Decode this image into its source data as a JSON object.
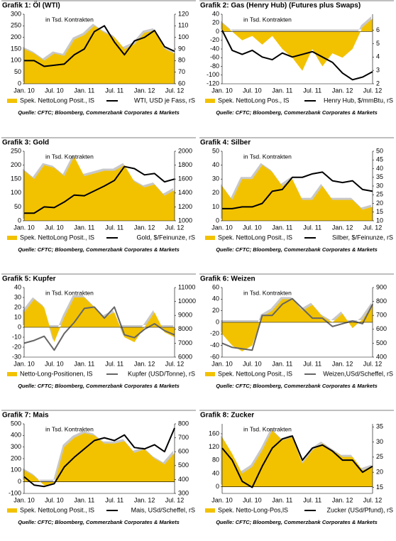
{
  "chart_data": [
    {
      "type": "area",
      "title": "Grafik 1: Öl (WTI)",
      "annotation": "in Tsd. Kontrakten",
      "note": "Quelle: CFTC; Bloomberg, Commerzbank Corporates & Markets",
      "categories": [
        "Jan. 10",
        null,
        null,
        "Jul. 10",
        null,
        null,
        "Jan. 11",
        null,
        null,
        "Jul. 11",
        null,
        null,
        "Jan. 12",
        null,
        null,
        "Jul. 12"
      ],
      "ylim": [
        0,
        300
      ],
      "yticks": [
        0,
        50,
        100,
        150,
        200,
        250,
        300
      ],
      "y2lim": [
        60,
        120
      ],
      "y2ticks": [
        60,
        70,
        80,
        90,
        100,
        110,
        120
      ],
      "series": [
        {
          "name": "Spek. NettoLong Posit., lS",
          "color": "#f2c200",
          "values": [
            150,
            130,
            100,
            130,
            120,
            190,
            210,
            250,
            220,
            200,
            150,
            170,
            220,
            230,
            150,
            130
          ]
        },
        {
          "name": "WTI, USD je Fass, rS",
          "color": "#000000",
          "axis": "y2",
          "type": "line",
          "values": [
            80,
            80,
            75,
            76,
            77,
            85,
            90,
            105,
            110,
            96,
            85,
            97,
            100,
            106,
            92,
            88
          ]
        }
      ]
    },
    {
      "type": "area",
      "title": "Grafik 2: Gas (Henry Hub) (Futures plus Swaps)",
      "annotation": "in Tsd. Kontrakten",
      "note": "Quelle: CFTC; Bloomberg, Commerzbank Corporates & Markets",
      "categories": [
        "Jan. 10",
        null,
        null,
        "Jul. 10",
        null,
        null,
        "Jan. 11",
        null,
        null,
        "Jul. 11",
        null,
        null,
        "Jan. 12",
        null,
        null,
        "Jul. 12"
      ],
      "ylim": [
        -120,
        40
      ],
      "yticks": [
        -120,
        -100,
        -80,
        -60,
        -40,
        -20,
        0,
        20,
        40
      ],
      "y2lim": [
        2,
        7.2
      ],
      "y2ticks": [
        2,
        3,
        4,
        5,
        6
      ],
      "series": [
        {
          "name": "Spek. NettoLong Pos., lS",
          "color": "#f2c200",
          "values": [
            20,
            0,
            -20,
            -10,
            -30,
            -10,
            -40,
            -60,
            -90,
            -40,
            -80,
            -50,
            -60,
            -40,
            10,
            30
          ]
        },
        {
          "name": "Henry Hub, $/mmBtu, rS",
          "color": "#000000",
          "axis": "y2",
          "type": "line",
          "values": [
            6,
            4.5,
            4.2,
            4.5,
            4,
            3.8,
            4.3,
            4,
            4.2,
            4.4,
            4,
            3.6,
            2.8,
            2.3,
            2.5,
            2.9
          ]
        }
      ]
    },
    {
      "type": "area",
      "title": "Grafik 3: Gold",
      "annotation": "in Tsd. Kontrakten",
      "note": "Quelle: CFTC; Bloomberg, Commerzbank Corporates & Markets",
      "categories": [
        "Jan. 10",
        null,
        null,
        "Jul. 10",
        null,
        null,
        "Jan. 11",
        null,
        null,
        "Jul. 11",
        null,
        null,
        "Jan. 12",
        null,
        null,
        "Jul. 12"
      ],
      "ylim": [
        0,
        250
      ],
      "yticks": [
        0,
        50,
        100,
        150,
        200,
        250
      ],
      "y2lim": [
        1000,
        2000
      ],
      "y2ticks": [
        1000,
        1200,
        1400,
        1600,
        1800,
        2000
      ],
      "series": [
        {
          "name": "Spek. NettoLong Posit., lS",
          "color": "#f2c200",
          "values": [
            180,
            150,
            200,
            190,
            160,
            230,
            160,
            170,
            180,
            180,
            200,
            140,
            120,
            130,
            90,
            110
          ]
        },
        {
          "name": "Gold, $/Feinunze, rS",
          "color": "#000000",
          "axis": "y2",
          "type": "line",
          "values": [
            1110,
            1110,
            1200,
            1190,
            1270,
            1370,
            1360,
            1430,
            1500,
            1580,
            1780,
            1750,
            1660,
            1680,
            1560,
            1600
          ]
        }
      ]
    },
    {
      "type": "area",
      "title": "Grafik 4: Silber",
      "annotation": "in Tsd. Kontrakten",
      "note": "Quelle: CFTC; Bloomberg, Commerzbank Corporates & Markets",
      "categories": [
        "Jan. 10",
        null,
        null,
        "Jul. 10",
        null,
        null,
        "Jan. 11",
        null,
        null,
        "Jul. 11",
        null,
        null,
        "Jan. 12",
        null,
        null,
        "Jul. 12"
      ],
      "ylim": [
        0,
        50
      ],
      "yticks": [
        0,
        10,
        20,
        30,
        40,
        50
      ],
      "y2lim": [
        10,
        50
      ],
      "y2ticks": [
        10,
        15,
        20,
        25,
        30,
        35,
        40,
        45,
        50
      ],
      "series": [
        {
          "name": "Spek. NettoLong Posit., lS",
          "color": "#f2c200",
          "values": [
            25,
            15,
            30,
            30,
            40,
            35,
            25,
            30,
            15,
            15,
            25,
            15,
            15,
            15,
            8,
            10
          ]
        },
        {
          "name": "Silber, $/Feinunze, rS",
          "color": "#000000",
          "axis": "y2",
          "type": "line",
          "values": [
            17,
            17,
            18,
            18,
            20,
            27,
            28,
            35,
            35,
            37,
            38,
            33,
            32,
            33,
            28,
            27
          ]
        }
      ]
    },
    {
      "type": "area",
      "title": "Grafik 5: Kupfer",
      "annotation": "in Tsd. Kontrakten",
      "note": "Quelle: CFTC; Bloomberg, Commerzbank Corporates & Markets",
      "categories": [
        "Jan. 10",
        null,
        null,
        "Jul. 10",
        null,
        null,
        "Jan. 11",
        null,
        null,
        "Jul. 11",
        null,
        null,
        "Jan. 12",
        null,
        null,
        "Jul. 12"
      ],
      "ylim": [
        -30,
        40
      ],
      "yticks": [
        -30,
        -20,
        -10,
        0,
        10,
        20,
        30,
        40
      ],
      "y2lim": [
        6000,
        11000
      ],
      "y2ticks": [
        6000,
        7000,
        8000,
        9000,
        10000,
        11000
      ],
      "series": [
        {
          "name": "Netto-Long-Positionen, lS",
          "color": "#f2c200",
          "values": [
            15,
            28,
            20,
            -15,
            10,
            30,
            30,
            20,
            10,
            15,
            -10,
            -15,
            0,
            15,
            -5,
            -10
          ]
        },
        {
          "name": "Kupfer (USD/Tonne), rS",
          "color": "#666666",
          "axis": "y2",
          "type": "line",
          "values": [
            7000,
            7200,
            7500,
            6500,
            7700,
            8500,
            9500,
            9600,
            8800,
            9600,
            7600,
            7400,
            8000,
            8400,
            7900,
            7600
          ]
        }
      ]
    },
    {
      "type": "area",
      "title": "Grafik 6: Weizen",
      "annotation": "in Tsd. Kontrakten",
      "note": "Quelle: CFTC; Bloomberg, Commerzbank Corporates & Markets",
      "categories": [
        "Jan. 10",
        null,
        null,
        "Jul. 10",
        null,
        null,
        "Jan. 11",
        null,
        null,
        "Jul. 11",
        null,
        null,
        "Jan. 12",
        null,
        null,
        "Jul. 12"
      ],
      "ylim": [
        -60,
        60
      ],
      "yticks": [
        -60,
        -40,
        -20,
        0,
        20,
        40,
        60
      ],
      "y2lim": [
        400,
        900
      ],
      "y2ticks": [
        400,
        500,
        600,
        700,
        800,
        900
      ],
      "series": [
        {
          "name": "Spek. NettoLong Posit., lS",
          "color": "#f2c200",
          "values": [
            -20,
            -40,
            -50,
            -40,
            10,
            20,
            40,
            40,
            20,
            30,
            10,
            0,
            15,
            -10,
            5,
            30
          ]
        },
        {
          "name": "Weizen,USd/Scheffel, rS",
          "color": "#666666",
          "axis": "y2",
          "type": "line",
          "values": [
            500,
            470,
            460,
            450,
            700,
            700,
            780,
            820,
            750,
            680,
            680,
            620,
            640,
            660,
            640,
            780
          ]
        }
      ]
    },
    {
      "type": "area",
      "title": "Grafik 7: Mais",
      "annotation": "in Tsd. Kontrakten",
      "note": "Quelle: CFTC; Bloomberg, Commerzbank Corporates & Markets",
      "categories": [
        "Jan. 10",
        null,
        null,
        "Jul. 10",
        null,
        null,
        "Jan. 11",
        null,
        null,
        "Jul. 11",
        null,
        null,
        "Jan. 12",
        null,
        null,
        "Jul. 12"
      ],
      "ylim": [
        -100,
        500
      ],
      "yticks": [
        -100,
        0,
        100,
        200,
        300,
        400,
        500
      ],
      "y2lim": [
        300,
        800
      ],
      "y2ticks": [
        300,
        400,
        500,
        600,
        700,
        800
      ],
      "series": [
        {
          "name": "Spek. NettoLong Posit., lS",
          "color": "#f2c200",
          "values": [
            100,
            50,
            -30,
            -20,
            300,
            380,
            420,
            400,
            330,
            330,
            350,
            250,
            280,
            200,
            150,
            250
          ]
        },
        {
          "name": "Mais, USd/Scheffel, rS",
          "color": "#000000",
          "axis": "y2",
          "type": "line",
          "values": [
            420,
            360,
            350,
            370,
            490,
            560,
            620,
            680,
            700,
            680,
            720,
            630,
            620,
            650,
            600,
            770
          ]
        }
      ]
    },
    {
      "type": "area",
      "title": "Grafik 8: Zucker",
      "annotation": "in Tsd. Kontrakten",
      "note": "Quelle: CFTC; Bloomberg, Commerzbank Corporates & Markets",
      "categories": [
        "Jan. 10",
        null,
        null,
        "Jul. 10",
        null,
        null,
        "Jan. 11",
        null,
        null,
        "Jul. 11",
        null,
        null,
        "Jan. 12",
        null,
        null,
        "Jul. 12"
      ],
      "ylim": [
        -20,
        190
      ],
      "yticks": [
        0,
        40,
        80,
        120,
        160
      ],
      "y2lim": [
        13,
        36
      ],
      "y2ticks": [
        15,
        20,
        25,
        30,
        35
      ],
      "series": [
        {
          "name": "Spek. Netto-Long-Pos,lS",
          "color": "#f2c200",
          "values": [
            150,
            100,
            40,
            60,
            110,
            170,
            140,
            150,
            70,
            110,
            130,
            110,
            90,
            90,
            50,
            60
          ]
        },
        {
          "name": "Zucker (USd/Pfund), rS",
          "color": "#000000",
          "axis": "y2",
          "type": "line",
          "values": [
            28,
            24,
            17,
            15,
            22,
            28,
            31,
            32,
            24,
            28,
            29,
            27,
            24,
            24,
            20,
            22
          ]
        }
      ]
    }
  ]
}
